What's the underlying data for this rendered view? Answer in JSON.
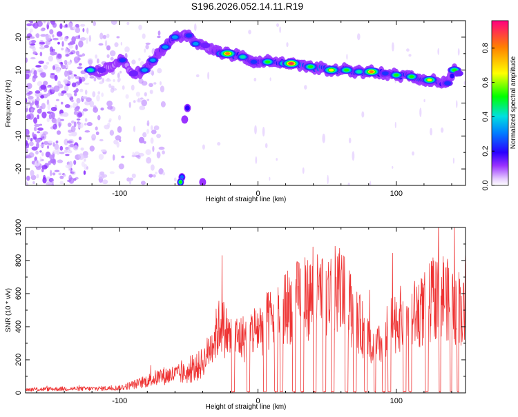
{
  "title": "S196.2026.052.14.11.R19",
  "chart_data": [
    {
      "type": "heatmap",
      "name": "spectrogram",
      "xlabel": "Height of straight line (km)",
      "ylabel": "Frequency (Hz)",
      "xlim": [
        -168,
        150
      ],
      "ylim": [
        -25,
        25
      ],
      "x_ticks": [
        -100,
        0,
        100
      ],
      "x_tick_labels": [
        "-100",
        "0",
        "100"
      ],
      "y_ticks": [
        -20,
        -10,
        0,
        10,
        20
      ],
      "y_tick_labels": [
        "-20",
        "-10",
        "0",
        "10",
        "20"
      ],
      "colorbar": {
        "label": "Normalized spectral amplitude",
        "range": [
          0,
          0.96
        ],
        "ticks": [
          0.0,
          0.2,
          0.4,
          0.6,
          0.8
        ],
        "tick_labels": [
          "0.0",
          "0.2",
          "0.4",
          "0.6",
          "0.8"
        ],
        "colors": [
          "#ffffff",
          "#d9b3ff",
          "#8000ff",
          "#0000ff",
          "#00c0ff",
          "#00ff00",
          "#ffff00",
          "#ff8000",
          "#ff0080"
        ]
      },
      "ridge_points": [
        {
          "x": -121,
          "y": 10,
          "amp": 0.45
        },
        {
          "x": -113,
          "y": 10,
          "amp": 0.15
        },
        {
          "x": -98,
          "y": 13,
          "amp": 0.3
        },
        {
          "x": -90,
          "y": 9,
          "amp": 0.2
        },
        {
          "x": -82,
          "y": 10,
          "amp": 0.4
        },
        {
          "x": -76,
          "y": 13,
          "amp": 0.35
        },
        {
          "x": -67,
          "y": 17,
          "amp": 0.4
        },
        {
          "x": -60,
          "y": 20,
          "amp": 0.4
        },
        {
          "x": -50,
          "y": 20.5,
          "amp": 0.3
        },
        {
          "x": -45,
          "y": 18,
          "amp": 0.35
        },
        {
          "x": -38,
          "y": 17.5,
          "amp": 0.2
        },
        {
          "x": -26,
          "y": 15,
          "amp": 0.55
        },
        {
          "x": -22,
          "y": 15,
          "amp": 0.92
        },
        {
          "x": -11,
          "y": 14,
          "amp": 0.45
        },
        {
          "x": -3,
          "y": 12.5,
          "amp": 0.3
        },
        {
          "x": 7,
          "y": 12.5,
          "amp": 0.6
        },
        {
          "x": 19,
          "y": 12,
          "amp": 0.55
        },
        {
          "x": 24,
          "y": 12,
          "amp": 0.95
        },
        {
          "x": 38,
          "y": 11,
          "amp": 0.6
        },
        {
          "x": 53,
          "y": 10,
          "amp": 0.8
        },
        {
          "x": 64,
          "y": 10,
          "amp": 0.6
        },
        {
          "x": 73,
          "y": 9.5,
          "amp": 0.5
        },
        {
          "x": 82,
          "y": 9.5,
          "amp": 0.9
        },
        {
          "x": 92,
          "y": 9,
          "amp": 0.3
        },
        {
          "x": 100,
          "y": 8.5,
          "amp": 0.55
        },
        {
          "x": 111,
          "y": 8,
          "amp": 0.55
        },
        {
          "x": 124,
          "y": 7,
          "amp": 0.7
        },
        {
          "x": 137,
          "y": 6,
          "amp": 0.3
        },
        {
          "x": 142,
          "y": 10,
          "amp": 0.55
        },
        {
          "x": 145,
          "y": 9,
          "amp": 0.2
        }
      ],
      "isolated_blobs": [
        {
          "x": -51,
          "y": -1.5,
          "amp": 0.2
        },
        {
          "x": -53,
          "y": -5,
          "amp": 0.15
        },
        {
          "x": -55,
          "y": -22.5,
          "amp": 0.35
        },
        {
          "x": -56,
          "y": -24,
          "amp": 0.55
        },
        {
          "x": -40,
          "y": -24,
          "amp": 0.15
        }
      ]
    },
    {
      "type": "line",
      "name": "snr",
      "xlabel": "Height of straight line (km)",
      "ylabel": "SNR (10 * v/v)",
      "xlim": [
        -168,
        150
      ],
      "ylim": [
        0,
        1000
      ],
      "x_ticks": [
        -100,
        0,
        100
      ],
      "x_tick_labels": [
        "-100",
        "0",
        "100"
      ],
      "y_ticks": [
        0,
        200,
        400,
        600,
        800,
        1000
      ],
      "y_tick_labels": [
        "0",
        "200",
        "400",
        "600",
        "800",
        "1000"
      ],
      "line_color": "#ee3333",
      "series": [
        {
          "name": "SNR",
          "envelope": [
            [
              -168,
              20
            ],
            [
              -140,
              25
            ],
            [
              -120,
              25
            ],
            [
              -100,
              30
            ],
            [
              -85,
              60
            ],
            [
              -70,
              100
            ],
            [
              -60,
              110
            ],
            [
              -50,
              120
            ],
            [
              -40,
              180
            ],
            [
              -33,
              300
            ],
            [
              -27,
              420
            ],
            [
              -20,
              330
            ],
            [
              -10,
              330
            ],
            [
              0,
              390
            ],
            [
              10,
              440
            ],
            [
              20,
              520
            ],
            [
              30,
              560
            ],
            [
              40,
              580
            ],
            [
              50,
              590
            ],
            [
              58,
              620
            ],
            [
              64,
              560
            ],
            [
              70,
              460
            ],
            [
              76,
              380
            ],
            [
              80,
              320
            ],
            [
              85,
              270
            ],
            [
              90,
              300
            ],
            [
              95,
              400
            ],
            [
              100,
              440
            ],
            [
              110,
              460
            ],
            [
              120,
              500
            ],
            [
              128,
              580
            ],
            [
              135,
              600
            ],
            [
              140,
              500
            ],
            [
              145,
              520
            ],
            [
              150,
              460
            ]
          ],
          "dropouts": [
            [
              -19,
              -17
            ],
            [
              -8,
              -6
            ],
            [
              4,
              6
            ],
            [
              12,
              14
            ],
            [
              16,
              18
            ],
            [
              25,
              27
            ],
            [
              31,
              33
            ],
            [
              40,
              42
            ],
            [
              47,
              49
            ],
            [
              53,
              55
            ],
            [
              63,
              65
            ],
            [
              69,
              71
            ],
            [
              77,
              79
            ],
            [
              84,
              85
            ],
            [
              90,
              92
            ],
            [
              94,
              96
            ],
            [
              105,
              107
            ],
            [
              109,
              111
            ],
            [
              121,
              123
            ],
            [
              131,
              132
            ],
            [
              139,
              140
            ],
            [
              144,
              145
            ]
          ],
          "peaks": [
            [
              -26,
              830
            ],
            [
              50,
              680
            ],
            [
              60,
              740
            ],
            [
              142,
              1000
            ],
            [
              146,
              600
            ],
            [
              150,
              850
            ]
          ]
        }
      ]
    }
  ]
}
